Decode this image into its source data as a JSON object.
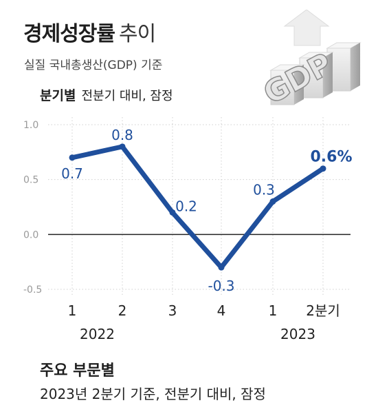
{
  "header": {
    "title_bold": "경제성장률",
    "title_light": "추이",
    "subtitle": "실질 국내총생산(GDP) 기준",
    "section_bold": "분기별",
    "section_light": "전분기 대비, 잠정"
  },
  "illustration": {
    "icon": "gdp-3d-bar-icon",
    "text": "GDP"
  },
  "colors": {
    "line": "#1f4f9c",
    "label": "#1f4f9c",
    "axis_text": "#999999",
    "zero_line": "#222222"
  },
  "chart_data": {
    "type": "line",
    "categories": [
      "1",
      "2",
      "3",
      "4",
      "1",
      "2분기"
    ],
    "year_labels": [
      {
        "text": "2022",
        "category_index": 0.5
      },
      {
        "text": "2023",
        "category_index": 4.5
      }
    ],
    "series": [
      {
        "values": [
          0.7,
          0.8,
          0.2,
          -0.3,
          0.3,
          0.6
        ],
        "labels": [
          "0.7",
          "0.8",
          "0.2",
          "-0.3",
          "0.3",
          "0.6%"
        ]
      }
    ],
    "yticks": [
      "1.0",
      "0.5",
      "0.0",
      "-0.5"
    ],
    "ylim": [
      -0.5,
      1.0
    ],
    "grid": true,
    "title": "",
    "xlabel": "",
    "ylabel": ""
  },
  "footer": {
    "heading": "주요 부문별",
    "note": "2023년 2분기 기준, 전분기 대비, 잠정"
  }
}
